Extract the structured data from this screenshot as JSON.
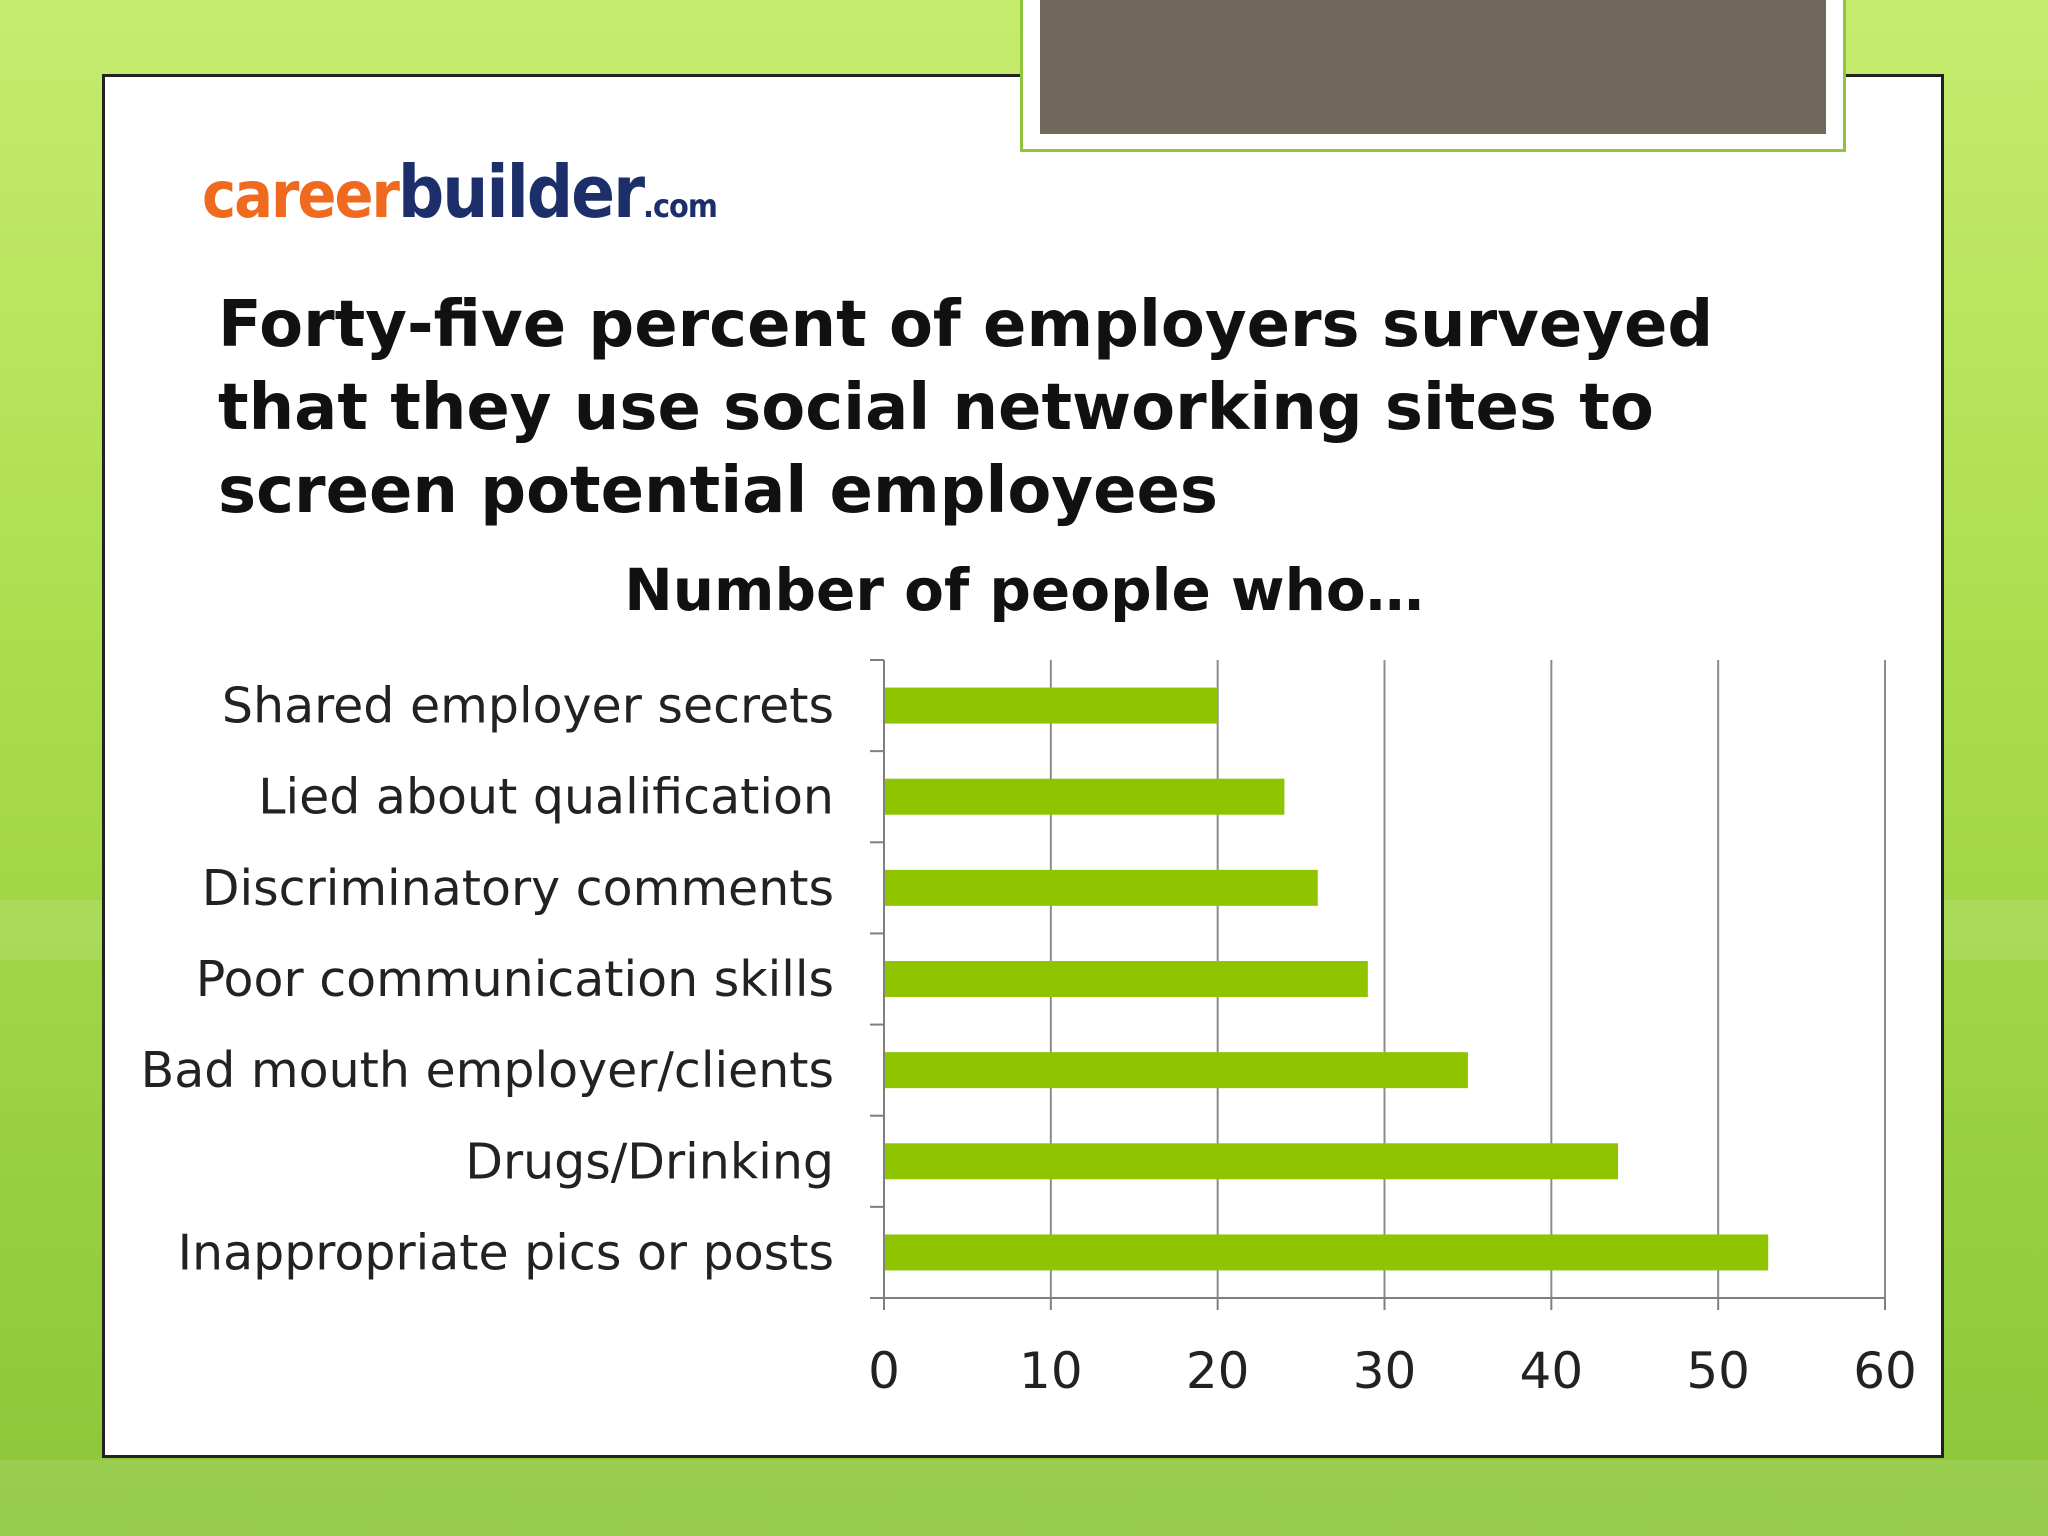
{
  "slide": {
    "logo": {
      "part1": "career",
      "part2": "builder",
      "part3": ".com"
    },
    "headline": "Forty-five percent of employers surveyed that they use social networking sites to screen potential employees"
  },
  "colors": {
    "bar": "#8fc400",
    "axis": "#7f7f7f",
    "grid": "#8c8c8c",
    "background_green": "#a9dc4c"
  },
  "chart_data": {
    "type": "bar",
    "orientation": "horizontal",
    "title": "Number of people who…",
    "categories": [
      "Shared employer secrets",
      "Lied about qualification",
      "Discriminatory comments",
      "Poor communication skills",
      "Bad mouth employer/clients",
      "Drugs/Drinking",
      "Inappropriate pics or posts"
    ],
    "values": [
      20,
      24,
      26,
      29,
      35,
      44,
      53
    ],
    "xlim": [
      0,
      60
    ],
    "xticks": [
      0,
      10,
      20,
      30,
      40,
      50,
      60
    ],
    "grid": true,
    "legend": "none"
  }
}
